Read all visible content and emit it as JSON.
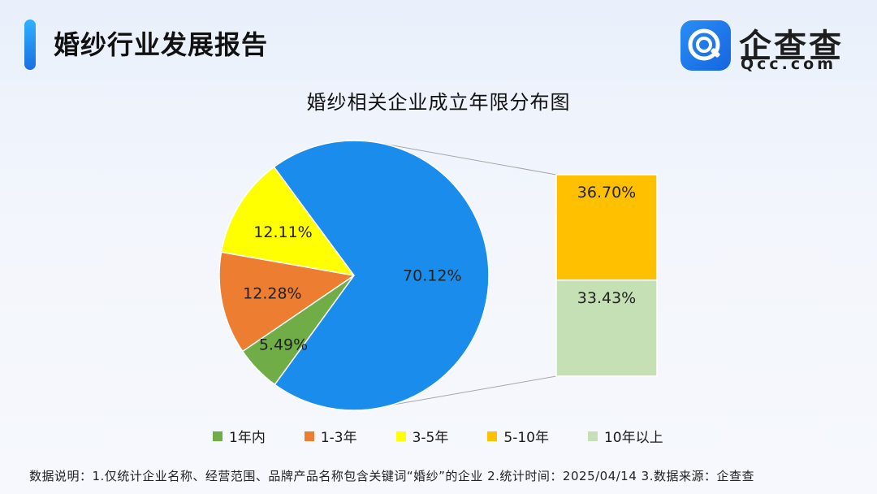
{
  "header": {
    "title": "婚纱行业发展报告"
  },
  "logo": {
    "name": "企查查",
    "domain": "Qcc.com"
  },
  "colors": {
    "under1": "#70ad47",
    "y1to3": "#ed7d31",
    "y3to5": "#ffff00",
    "y5to10": "#ffc000",
    "over10": "#c5e0b4",
    "main": "#1a8cec"
  },
  "chart_data": {
    "type": "pie",
    "title": "婚纱相关企业成立年限分布图",
    "pie": {
      "slices": [
        {
          "name": "5.49%",
          "value": 5.49,
          "color": "#70ad47"
        },
        {
          "name": "12.28%",
          "value": 12.28,
          "color": "#ed7d31"
        },
        {
          "name": "12.11%",
          "value": 12.11,
          "color": "#ffff00"
        },
        {
          "name": "70.12%",
          "value": 70.12,
          "color": "#1a8cec"
        }
      ]
    },
    "bar_of_pie": {
      "segments": [
        {
          "label": "36.70%",
          "value": 36.7,
          "color": "#ffc000"
        },
        {
          "label": "33.43%",
          "value": 33.43,
          "color": "#c5e0b4"
        }
      ]
    },
    "legend": [
      {
        "label": "1年内",
        "color": "#70ad47"
      },
      {
        "label": "1-3年",
        "color": "#ed7d31"
      },
      {
        "label": "3-5年",
        "color": "#ffff00"
      },
      {
        "label": "5-10年",
        "color": "#ffc000"
      },
      {
        "label": "10年以上",
        "color": "#c5e0b4"
      }
    ],
    "legend_position": "bottom"
  },
  "footnote": "数据说明：1.仅统计企业名称、经营范围、品牌产品名称包含关键词“婚纱”的企业   2.统计时间：2025/04/14   3.数据来源：企查查"
}
